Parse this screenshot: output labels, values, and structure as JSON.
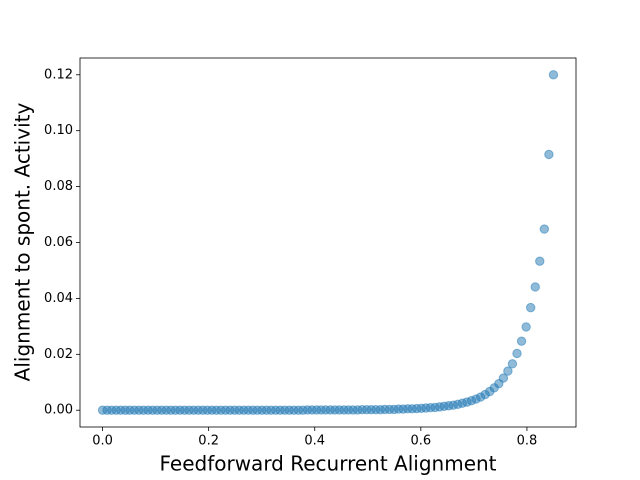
{
  "chart_data": {
    "type": "scatter",
    "x_label": "Feedforward Recurrent Alignment",
    "y_label": "Alignment to spont. Activity",
    "color": "#1f77b4",
    "xlim": [
      -0.0425,
      0.8925
    ],
    "ylim": [
      -0.006,
      0.126
    ],
    "xticks": [
      {
        "value": 0,
        "label": "0.0"
      },
      {
        "value": 0.2,
        "label": "0.2"
      },
      {
        "value": 0.4,
        "label": "0.4"
      },
      {
        "value": 0.6,
        "label": "0.6"
      },
      {
        "value": 0.8,
        "label": "0.8"
      }
    ],
    "yticks": [
      {
        "value": 0,
        "label": "0.00"
      },
      {
        "value": 0.02,
        "label": "0.02"
      },
      {
        "value": 0.04,
        "label": "0.04"
      },
      {
        "value": 0.06,
        "label": "0.06"
      },
      {
        "value": 0.08,
        "label": "0.08"
      },
      {
        "value": 0.1,
        "label": "0.10"
      },
      {
        "value": 0.12,
        "label": "0.12"
      }
    ],
    "x": [
      0,
      0.0086,
      0.0172,
      0.0258,
      0.0343,
      0.0429,
      0.0515,
      0.0601,
      0.0687,
      0.0773,
      0.0859,
      0.0944,
      0.103,
      0.1116,
      0.1202,
      0.1288,
      0.1374,
      0.146,
      0.1545,
      0.1631,
      0.1717,
      0.1803,
      0.1889,
      0.1975,
      0.2061,
      0.2146,
      0.2232,
      0.2318,
      0.2404,
      0.249,
      0.2576,
      0.2662,
      0.2747,
      0.2833,
      0.2919,
      0.3005,
      0.3091,
      0.3177,
      0.3263,
      0.3348,
      0.3434,
      0.352,
      0.3606,
      0.3692,
      0.3778,
      0.3864,
      0.3949,
      0.4035,
      0.4121,
      0.4207,
      0.4293,
      0.4379,
      0.4465,
      0.4551,
      0.4636,
      0.4722,
      0.4808,
      0.4894,
      0.498,
      0.5066,
      0.5152,
      0.5237,
      0.5323,
      0.5409,
      0.5495,
      0.5581,
      0.5667,
      0.5753,
      0.5838,
      0.5924,
      0.601,
      0.6096,
      0.6182,
      0.6268,
      0.6354,
      0.6439,
      0.6525,
      0.6611,
      0.6697,
      0.6783,
      0.6869,
      0.6955,
      0.704,
      0.7126,
      0.7212,
      0.7298,
      0.7384,
      0.747,
      0.7556,
      0.7641,
      0.7727,
      0.7813,
      0.7899,
      0.7985,
      0.8071,
      0.8157,
      0.8242,
      0.8328,
      0.8414,
      0.85
    ],
    "values": [
      0,
      0,
      0,
      0,
      0,
      0,
      0,
      0,
      0,
      0,
      0,
      0,
      0,
      0,
      0,
      0,
      0,
      0,
      0,
      0,
      0,
      0,
      0,
      0,
      0,
      0,
      0,
      0,
      0,
      0,
      0,
      0,
      0,
      0,
      0,
      0,
      0,
      0,
      0,
      0,
      0,
      0,
      0,
      0,
      0,
      0.0001,
      0.0001,
      0.0001,
      0.0001,
      0.0001,
      0.0001,
      0.0001,
      0.0001,
      0.0001,
      0.0001,
      0.0001,
      0.0001,
      0.0002,
      0.0002,
      0.0002,
      0.0002,
      0.0002,
      0.0003,
      0.0003,
      0.0003,
      0.0004,
      0.0004,
      0.0005,
      0.0005,
      0.0006,
      0.0007,
      0.0008,
      0.0009,
      0.001,
      0.0012,
      0.0014,
      0.0016,
      0.0018,
      0.0021,
      0.0025,
      0.0029,
      0.0034,
      0.004,
      0.0047,
      0.0056,
      0.0067,
      0.008,
      0.0095,
      0.0115,
      0.014,
      0.0166,
      0.0203,
      0.0247,
      0.0298,
      0.0367,
      0.0441,
      0.0533,
      0.0648,
      0.0915,
      0.12
    ]
  }
}
